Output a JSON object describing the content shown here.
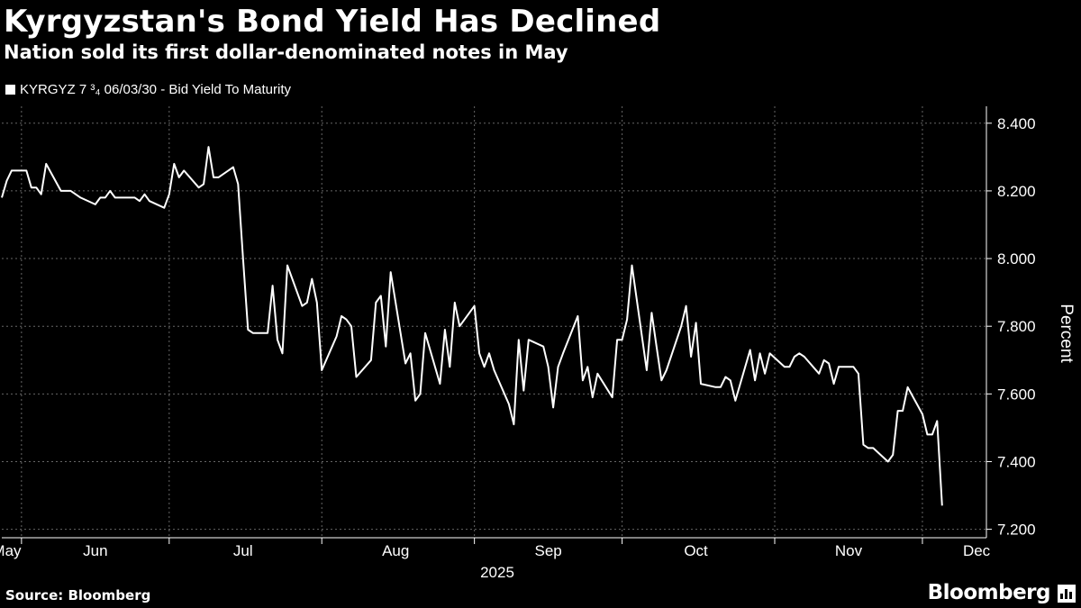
{
  "title": "Kyrgyzstan's Bond Yield Has Declined",
  "subtitle": "Nation sold its first dollar-denominated notes in May",
  "legend_label": "KYRGYZ 7 ³₄ 06/03/30 - Bid Yield To Maturity",
  "source": "Source: Bloomberg",
  "brand": "Bloomberg",
  "colors": {
    "background": "#000000",
    "line": "#ffffff",
    "grid": "#666666"
  },
  "chart_data": {
    "type": "line",
    "title": "Kyrgyzstan's Bond Yield Has Declined",
    "subtitle": "Nation sold its first dollar-denominated notes in May",
    "xlabel": "2025",
    "ylabel": "Percent",
    "ylim": [
      7.2,
      8.4
    ],
    "yticks": [
      8.4,
      8.2,
      8.0,
      7.8,
      7.6,
      7.4,
      7.2
    ],
    "ytick_labels": [
      "8.400",
      "8.200",
      "8.000",
      "7.800",
      "7.600",
      "7.400",
      "7.200"
    ],
    "xlim": [
      "2025-05-28",
      "2025-12-14"
    ],
    "xtick_labels": [
      {
        "label": "May",
        "date": "2025-05-29"
      },
      {
        "label": "Jun",
        "date": "2025-06-16"
      },
      {
        "label": "Jul",
        "date": "2025-07-16"
      },
      {
        "label": "Aug",
        "date": "2025-08-16"
      },
      {
        "label": "Sep",
        "date": "2025-09-16"
      },
      {
        "label": "Oct",
        "date": "2025-10-16"
      },
      {
        "label": "Nov",
        "date": "2025-11-16"
      },
      {
        "label": "Dec",
        "date": "2025-12-12"
      }
    ],
    "month_boundaries": [
      "2025-06-01",
      "2025-07-01",
      "2025-08-01",
      "2025-09-01",
      "2025-10-01",
      "2025-11-01",
      "2025-12-01"
    ],
    "grid": true,
    "legend_position": "top-left",
    "series": [
      {
        "name": "KYRGYZ 7 ³₄ 06/03/30 - Bid Yield To Maturity",
        "points": [
          [
            "2025-05-28",
            8.18
          ],
          [
            "2025-05-29",
            8.23
          ],
          [
            "2025-05-30",
            8.26
          ],
          [
            "2025-06-02",
            8.26
          ],
          [
            "2025-06-03",
            8.21
          ],
          [
            "2025-06-04",
            8.21
          ],
          [
            "2025-06-05",
            8.19
          ],
          [
            "2025-06-06",
            8.28
          ],
          [
            "2025-06-09",
            8.2
          ],
          [
            "2025-06-10",
            8.2
          ],
          [
            "2025-06-11",
            8.2
          ],
          [
            "2025-06-12",
            8.19
          ],
          [
            "2025-06-13",
            8.18
          ],
          [
            "2025-06-16",
            8.16
          ],
          [
            "2025-06-17",
            8.18
          ],
          [
            "2025-06-18",
            8.18
          ],
          [
            "2025-06-19",
            8.2
          ],
          [
            "2025-06-20",
            8.18
          ],
          [
            "2025-06-23",
            8.18
          ],
          [
            "2025-06-24",
            8.18
          ],
          [
            "2025-06-25",
            8.17
          ],
          [
            "2025-06-26",
            8.19
          ],
          [
            "2025-06-27",
            8.17
          ],
          [
            "2025-06-30",
            8.15
          ],
          [
            "2025-07-01",
            8.19
          ],
          [
            "2025-07-02",
            8.28
          ],
          [
            "2025-07-03",
            8.24
          ],
          [
            "2025-07-04",
            8.26
          ],
          [
            "2025-07-07",
            8.21
          ],
          [
            "2025-07-08",
            8.22
          ],
          [
            "2025-07-09",
            8.33
          ],
          [
            "2025-07-10",
            8.24
          ],
          [
            "2025-07-11",
            8.24
          ],
          [
            "2025-07-14",
            8.27
          ],
          [
            "2025-07-15",
            8.22
          ],
          [
            "2025-07-16",
            8.0
          ],
          [
            "2025-07-17",
            7.79
          ],
          [
            "2025-07-18",
            7.78
          ],
          [
            "2025-07-21",
            7.78
          ],
          [
            "2025-07-22",
            7.92
          ],
          [
            "2025-07-23",
            7.76
          ],
          [
            "2025-07-24",
            7.72
          ],
          [
            "2025-07-25",
            7.98
          ],
          [
            "2025-07-28",
            7.86
          ],
          [
            "2025-07-29",
            7.87
          ],
          [
            "2025-07-30",
            7.94
          ],
          [
            "2025-07-31",
            7.87
          ],
          [
            "2025-08-01",
            7.67
          ],
          [
            "2025-08-04",
            7.77
          ],
          [
            "2025-08-05",
            7.83
          ],
          [
            "2025-08-06",
            7.82
          ],
          [
            "2025-08-07",
            7.8
          ],
          [
            "2025-08-08",
            7.65
          ],
          [
            "2025-08-11",
            7.7
          ],
          [
            "2025-08-12",
            7.87
          ],
          [
            "2025-08-13",
            7.89
          ],
          [
            "2025-08-14",
            7.74
          ],
          [
            "2025-08-15",
            7.96
          ],
          [
            "2025-08-18",
            7.69
          ],
          [
            "2025-08-19",
            7.72
          ],
          [
            "2025-08-20",
            7.58
          ],
          [
            "2025-08-21",
            7.6
          ],
          [
            "2025-08-22",
            7.78
          ],
          [
            "2025-08-25",
            7.63
          ],
          [
            "2025-08-26",
            7.79
          ],
          [
            "2025-08-27",
            7.68
          ],
          [
            "2025-08-28",
            7.87
          ],
          [
            "2025-08-29",
            7.8
          ],
          [
            "2025-09-01",
            7.86
          ],
          [
            "2025-09-02",
            7.72
          ],
          [
            "2025-09-03",
            7.68
          ],
          [
            "2025-09-04",
            7.72
          ],
          [
            "2025-09-05",
            7.67
          ],
          [
            "2025-09-08",
            7.57
          ],
          [
            "2025-09-09",
            7.51
          ],
          [
            "2025-09-10",
            7.76
          ],
          [
            "2025-09-11",
            7.61
          ],
          [
            "2025-09-12",
            7.76
          ],
          [
            "2025-09-15",
            7.74
          ],
          [
            "2025-09-16",
            7.68
          ],
          [
            "2025-09-17",
            7.56
          ],
          [
            "2025-09-18",
            7.68
          ],
          [
            "2025-09-19",
            7.72
          ],
          [
            "2025-09-22",
            7.83
          ],
          [
            "2025-09-23",
            7.64
          ],
          [
            "2025-09-24",
            7.68
          ],
          [
            "2025-09-25",
            7.59
          ],
          [
            "2025-09-26",
            7.66
          ],
          [
            "2025-09-29",
            7.59
          ],
          [
            "2025-09-30",
            7.76
          ],
          [
            "2025-10-01",
            7.76
          ],
          [
            "2025-10-02",
            7.82
          ],
          [
            "2025-10-03",
            7.98
          ],
          [
            "2025-10-06",
            7.67
          ],
          [
            "2025-10-07",
            7.84
          ],
          [
            "2025-10-08",
            7.74
          ],
          [
            "2025-10-09",
            7.64
          ],
          [
            "2025-10-10",
            7.67
          ],
          [
            "2025-10-13",
            7.8
          ],
          [
            "2025-10-14",
            7.86
          ],
          [
            "2025-10-15",
            7.71
          ],
          [
            "2025-10-16",
            7.81
          ],
          [
            "2025-10-17",
            7.63
          ],
          [
            "2025-10-20",
            7.62
          ],
          [
            "2025-10-21",
            7.62
          ],
          [
            "2025-10-22",
            7.65
          ],
          [
            "2025-10-23",
            7.64
          ],
          [
            "2025-10-24",
            7.58
          ],
          [
            "2025-10-27",
            7.73
          ],
          [
            "2025-10-28",
            7.64
          ],
          [
            "2025-10-29",
            7.72
          ],
          [
            "2025-10-30",
            7.66
          ],
          [
            "2025-10-31",
            7.72
          ],
          [
            "2025-11-03",
            7.68
          ],
          [
            "2025-11-04",
            7.68
          ],
          [
            "2025-11-05",
            7.71
          ],
          [
            "2025-11-06",
            7.72
          ],
          [
            "2025-11-07",
            7.71
          ],
          [
            "2025-11-10",
            7.66
          ],
          [
            "2025-11-11",
            7.7
          ],
          [
            "2025-11-12",
            7.69
          ],
          [
            "2025-11-13",
            7.63
          ],
          [
            "2025-11-14",
            7.68
          ],
          [
            "2025-11-17",
            7.68
          ],
          [
            "2025-11-18",
            7.66
          ],
          [
            "2025-11-19",
            7.45
          ],
          [
            "2025-11-20",
            7.44
          ],
          [
            "2025-11-21",
            7.44
          ],
          [
            "2025-11-24",
            7.4
          ],
          [
            "2025-11-25",
            7.42
          ],
          [
            "2025-11-26",
            7.55
          ],
          [
            "2025-11-27",
            7.55
          ],
          [
            "2025-11-28",
            7.62
          ],
          [
            "2025-12-01",
            7.54
          ],
          [
            "2025-12-02",
            7.48
          ],
          [
            "2025-12-03",
            7.48
          ],
          [
            "2025-12-04",
            7.52
          ],
          [
            "2025-12-05",
            7.27
          ]
        ]
      }
    ]
  }
}
